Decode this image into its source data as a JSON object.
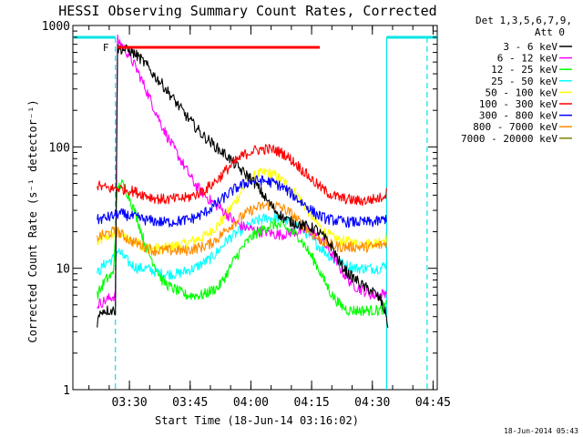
{
  "chart_data": {
    "type": "line",
    "title": "HESSI Observing Summary Count Rates, Corrected",
    "xlabel": "Start Time (18-Jun-14 03:16:02)",
    "ylabel": "Corrected Count Rate (s⁻¹ detector⁻¹)",
    "yscale": "log",
    "ylim": [
      1,
      1000
    ],
    "xlim_minutes": [
      0,
      90
    ],
    "y_ticks": [
      "1",
      "10",
      "100",
      "1000"
    ],
    "x_ticks": [
      {
        "label": "03:30",
        "t": 13.97
      },
      {
        "label": "03:45",
        "t": 28.97
      },
      {
        "label": "04:00",
        "t": 43.97
      },
      {
        "label": "04:15",
        "t": 58.97
      },
      {
        "label": "04:30",
        "t": 73.97
      },
      {
        "label": "04:45",
        "t": 88.97
      }
    ],
    "legend_header": [
      "Det 1,3,5,6,7,9,",
      "Att 0"
    ],
    "legend_position": "right",
    "footer": "18-Jun-2014 05:43",
    "flare_marker": {
      "label": "F",
      "t_start": 11,
      "t_end": 61,
      "y": 660
    },
    "night_intervals": [
      [
        0,
        10.5
      ],
      [
        77.5,
        90
      ]
    ],
    "series": [
      {
        "name": "3 - 6 keV",
        "color": "#000000",
        "points": [
          [
            6,
            3.6
          ],
          [
            7,
            4.5
          ],
          [
            9,
            4.5
          ],
          [
            10.5,
            4.5
          ],
          [
            11,
            650
          ],
          [
            12,
            640
          ],
          [
            14,
            620
          ],
          [
            16,
            560
          ],
          [
            18,
            480
          ],
          [
            20,
            390
          ],
          [
            22,
            330
          ],
          [
            24,
            270
          ],
          [
            26,
            220
          ],
          [
            28,
            180
          ],
          [
            30,
            150
          ],
          [
            32,
            125
          ],
          [
            34,
            110
          ],
          [
            36,
            95
          ],
          [
            38,
            85
          ],
          [
            40,
            72
          ],
          [
            42,
            62
          ],
          [
            44,
            55
          ],
          [
            46,
            45
          ],
          [
            48,
            36
          ],
          [
            50,
            30
          ],
          [
            52,
            26
          ],
          [
            54,
            24
          ],
          [
            56,
            23
          ],
          [
            58,
            22
          ],
          [
            60,
            21
          ],
          [
            62,
            18
          ],
          [
            64,
            15
          ],
          [
            66,
            11
          ],
          [
            68,
            9
          ],
          [
            70,
            8
          ],
          [
            72,
            7
          ],
          [
            74,
            6.5
          ],
          [
            76,
            5.5
          ],
          [
            77.5,
            4
          ],
          [
            78,
            3
          ]
        ]
      },
      {
        "name": "6 - 12 keV",
        "color": "#ff00ff",
        "points": [
          [
            6,
            5
          ],
          [
            10.5,
            6
          ],
          [
            11,
            760
          ],
          [
            12,
            700
          ],
          [
            14,
            560
          ],
          [
            16,
            420
          ],
          [
            18,
            300
          ],
          [
            20,
            210
          ],
          [
            22,
            150
          ],
          [
            24,
            110
          ],
          [
            26,
            85
          ],
          [
            28,
            65
          ],
          [
            30,
            50
          ],
          [
            32,
            42
          ],
          [
            34,
            36
          ],
          [
            36,
            32
          ],
          [
            38,
            28
          ],
          [
            40,
            24
          ],
          [
            42,
            22
          ],
          [
            44,
            21
          ],
          [
            46,
            20
          ],
          [
            48,
            20
          ],
          [
            50,
            19
          ],
          [
            52,
            19
          ],
          [
            54,
            20
          ],
          [
            56,
            20
          ],
          [
            58,
            21
          ],
          [
            60,
            19
          ],
          [
            62,
            16
          ],
          [
            64,
            13
          ],
          [
            66,
            10
          ],
          [
            68,
            8
          ],
          [
            70,
            7
          ],
          [
            72,
            6.5
          ],
          [
            74,
            6
          ],
          [
            76,
            6
          ],
          [
            77.5,
            6.5
          ]
        ]
      },
      {
        "name": "12 - 25 keV",
        "color": "#00ff00",
        "points": [
          [
            6,
            6
          ],
          [
            8,
            8
          ],
          [
            10,
            9
          ],
          [
            11,
            45
          ],
          [
            12,
            50
          ],
          [
            13,
            45
          ],
          [
            14,
            38
          ],
          [
            16,
            25
          ],
          [
            18,
            15
          ],
          [
            20,
            11
          ],
          [
            22,
            8
          ],
          [
            24,
            7
          ],
          [
            26,
            6.5
          ],
          [
            28,
            6
          ],
          [
            30,
            6
          ],
          [
            32,
            6
          ],
          [
            34,
            6.5
          ],
          [
            36,
            7
          ],
          [
            38,
            9
          ],
          [
            40,
            12
          ],
          [
            42,
            15
          ],
          [
            44,
            18
          ],
          [
            46,
            20
          ],
          [
            48,
            22
          ],
          [
            50,
            23
          ],
          [
            52,
            22
          ],
          [
            54,
            20
          ],
          [
            56,
            18
          ],
          [
            58,
            14
          ],
          [
            60,
            11
          ],
          [
            62,
            8
          ],
          [
            64,
            6
          ],
          [
            66,
            5
          ],
          [
            68,
            4.5
          ],
          [
            70,
            4.5
          ],
          [
            72,
            4.5
          ],
          [
            74,
            4.5
          ],
          [
            76,
            4.5
          ],
          [
            77.5,
            5
          ]
        ]
      },
      {
        "name": "25 - 50 keV",
        "color": "#00ffff",
        "points": [
          [
            6,
            9
          ],
          [
            8,
            11
          ],
          [
            10,
            12
          ],
          [
            11,
            14
          ],
          [
            12,
            13
          ],
          [
            14,
            11
          ],
          [
            16,
            10
          ],
          [
            18,
            10
          ],
          [
            20,
            9.5
          ],
          [
            22,
            9
          ],
          [
            24,
            9
          ],
          [
            26,
            9
          ],
          [
            28,
            9.5
          ],
          [
            30,
            10
          ],
          [
            32,
            11
          ],
          [
            34,
            12
          ],
          [
            36,
            14
          ],
          [
            38,
            17
          ],
          [
            40,
            19
          ],
          [
            42,
            21
          ],
          [
            44,
            23
          ],
          [
            46,
            25
          ],
          [
            48,
            26
          ],
          [
            50,
            26
          ],
          [
            52,
            25
          ],
          [
            54,
            24
          ],
          [
            56,
            22
          ],
          [
            58,
            19
          ],
          [
            60,
            16
          ],
          [
            62,
            14
          ],
          [
            64,
            12
          ],
          [
            66,
            11
          ],
          [
            68,
            10.5
          ],
          [
            70,
            10
          ],
          [
            72,
            10
          ],
          [
            74,
            10
          ],
          [
            76,
            10
          ],
          [
            77.5,
            11
          ]
        ]
      },
      {
        "name": "50 - 100 keV",
        "color": "#ffff00",
        "points": [
          [
            6,
            16
          ],
          [
            8,
            18
          ],
          [
            10,
            19
          ],
          [
            11,
            20
          ],
          [
            12,
            19
          ],
          [
            14,
            17
          ],
          [
            16,
            16
          ],
          [
            18,
            15
          ],
          [
            20,
            14.5
          ],
          [
            22,
            14.5
          ],
          [
            24,
            15
          ],
          [
            26,
            15.5
          ],
          [
            28,
            16
          ],
          [
            30,
            17
          ],
          [
            32,
            18
          ],
          [
            34,
            20
          ],
          [
            36,
            23
          ],
          [
            38,
            28
          ],
          [
            40,
            35
          ],
          [
            42,
            45
          ],
          [
            44,
            55
          ],
          [
            46,
            60
          ],
          [
            48,
            62
          ],
          [
            50,
            58
          ],
          [
            52,
            52
          ],
          [
            54,
            45
          ],
          [
            56,
            38
          ],
          [
            58,
            30
          ],
          [
            60,
            24
          ],
          [
            62,
            20
          ],
          [
            64,
            18
          ],
          [
            66,
            17
          ],
          [
            68,
            16.5
          ],
          [
            70,
            16
          ],
          [
            72,
            16
          ],
          [
            74,
            16
          ],
          [
            76,
            17
          ],
          [
            77.5,
            18
          ]
        ]
      },
      {
        "name": "100 - 300 keV",
        "color": "#ff0000",
        "points": [
          [
            6,
            48
          ],
          [
            8,
            46
          ],
          [
            10,
            45
          ],
          [
            11,
            46
          ],
          [
            12,
            45
          ],
          [
            14,
            44
          ],
          [
            16,
            42
          ],
          [
            18,
            40
          ],
          [
            20,
            38
          ],
          [
            22,
            37
          ],
          [
            24,
            37
          ],
          [
            26,
            37.5
          ],
          [
            28,
            38
          ],
          [
            30,
            40
          ],
          [
            32,
            43
          ],
          [
            34,
            48
          ],
          [
            36,
            55
          ],
          [
            38,
            65
          ],
          [
            40,
            75
          ],
          [
            42,
            85
          ],
          [
            44,
            92
          ],
          [
            46,
            95
          ],
          [
            48,
            96
          ],
          [
            50,
            94
          ],
          [
            52,
            88
          ],
          [
            54,
            78
          ],
          [
            56,
            68
          ],
          [
            58,
            58
          ],
          [
            60,
            50
          ],
          [
            62,
            44
          ],
          [
            64,
            40
          ],
          [
            66,
            38
          ],
          [
            68,
            37
          ],
          [
            70,
            36
          ],
          [
            72,
            36
          ],
          [
            74,
            37
          ],
          [
            76,
            38
          ],
          [
            77.5,
            42
          ]
        ]
      },
      {
        "name": "300 - 800 keV",
        "color": "#0000ff",
        "points": [
          [
            6,
            25
          ],
          [
            8,
            26
          ],
          [
            10,
            27
          ],
          [
            11,
            28
          ],
          [
            12,
            28
          ],
          [
            14,
            27
          ],
          [
            16,
            26
          ],
          [
            18,
            25
          ],
          [
            20,
            24.5
          ],
          [
            22,
            24
          ],
          [
            24,
            24
          ],
          [
            26,
            24.5
          ],
          [
            28,
            25
          ],
          [
            30,
            26
          ],
          [
            32,
            28
          ],
          [
            34,
            31
          ],
          [
            36,
            35
          ],
          [
            38,
            40
          ],
          [
            40,
            45
          ],
          [
            42,
            49
          ],
          [
            44,
            52
          ],
          [
            46,
            53
          ],
          [
            48,
            52
          ],
          [
            50,
            50
          ],
          [
            52,
            46
          ],
          [
            54,
            41
          ],
          [
            56,
            36
          ],
          [
            58,
            32
          ],
          [
            60,
            28
          ],
          [
            62,
            26
          ],
          [
            64,
            25
          ],
          [
            66,
            24.5
          ],
          [
            68,
            24
          ],
          [
            70,
            24
          ],
          [
            72,
            24
          ],
          [
            74,
            24
          ],
          [
            76,
            24.5
          ],
          [
            77.5,
            26
          ]
        ]
      },
      {
        "name": "800 - 7000 keV",
        "color": "#ff8c00",
        "points": [
          [
            6,
            18
          ],
          [
            8,
            19
          ],
          [
            10,
            20
          ],
          [
            11,
            20
          ],
          [
            12,
            19
          ],
          [
            14,
            17
          ],
          [
            16,
            16
          ],
          [
            18,
            15
          ],
          [
            20,
            14
          ],
          [
            22,
            14
          ],
          [
            24,
            14
          ],
          [
            26,
            14
          ],
          [
            28,
            14
          ],
          [
            30,
            14.5
          ],
          [
            32,
            15
          ],
          [
            34,
            16
          ],
          [
            36,
            18
          ],
          [
            38,
            21
          ],
          [
            40,
            24
          ],
          [
            42,
            27
          ],
          [
            44,
            30
          ],
          [
            46,
            32
          ],
          [
            48,
            33
          ],
          [
            50,
            33
          ],
          [
            52,
            31
          ],
          [
            54,
            28
          ],
          [
            56,
            24
          ],
          [
            58,
            21
          ],
          [
            60,
            18
          ],
          [
            62,
            16.5
          ],
          [
            64,
            15.5
          ],
          [
            66,
            15
          ],
          [
            68,
            15
          ],
          [
            70,
            15
          ],
          [
            72,
            15
          ],
          [
            74,
            15
          ],
          [
            76,
            15.5
          ],
          [
            77.5,
            16
          ]
        ]
      },
      {
        "name": "7000 - 20000 keV",
        "color": "#808000",
        "points": []
      }
    ]
  }
}
